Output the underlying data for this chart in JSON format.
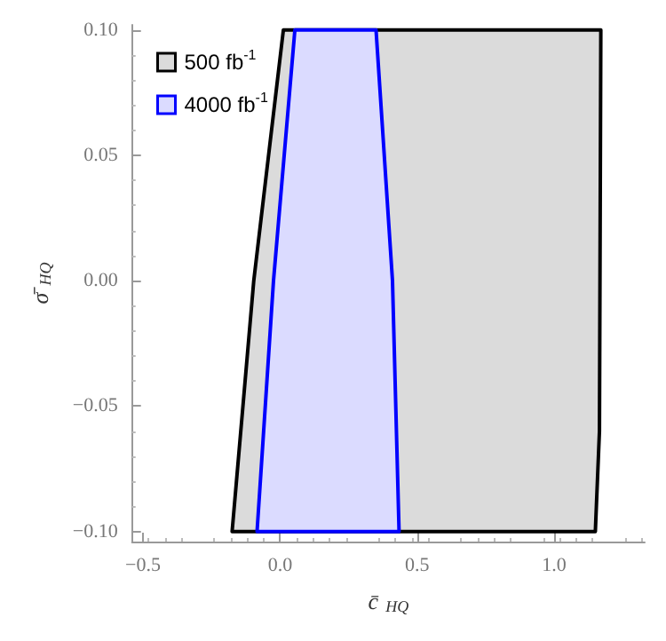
{
  "chart_data": {
    "type": "area",
    "xlabel": "c̄$_{HQ}$",
    "ylabel": "σ̄$_{HQ}$",
    "series": [
      {
        "name": "500 fb$^{-1}$",
        "color": "#000000",
        "x": [
          -0.175,
          -0.096,
          0.012,
          1.17,
          1.165,
          1.15,
          -0.175
        ],
        "values": [
          -0.1,
          0.0,
          0.1,
          0.1,
          -0.06,
          -0.1,
          -0.1
        ]
      },
      {
        "name": "4000 fb$^{-1}$",
        "color": "#0000ff",
        "x": [
          -0.084,
          -0.024,
          0.054,
          0.35,
          0.41,
          0.434,
          -0.084
        ],
        "values": [
          -0.1,
          0.0,
          0.1,
          0.1,
          0.0,
          -0.1,
          -0.1
        ]
      }
    ],
    "xlim": [
      -0.54,
      1.33
    ],
    "ylim": [
      -0.104,
      0.102
    ],
    "xticks": [
      {
        "value": -0.5,
        "label": "−0.5"
      },
      {
        "value": 0,
        "label": "0.0"
      },
      {
        "value": 0.5,
        "label": "0.5"
      },
      {
        "value": 1,
        "label": "1.0"
      }
    ],
    "yticks": [
      {
        "value": -0.1,
        "label": "−0.10"
      },
      {
        "value": -0.05,
        "label": "−0.05"
      },
      {
        "value": 0,
        "label": "0.00"
      },
      {
        "value": 0.05,
        "label": "0.05"
      },
      {
        "value": 0.1,
        "label": "0.10"
      }
    ],
    "grid": false,
    "legend": "top left"
  }
}
